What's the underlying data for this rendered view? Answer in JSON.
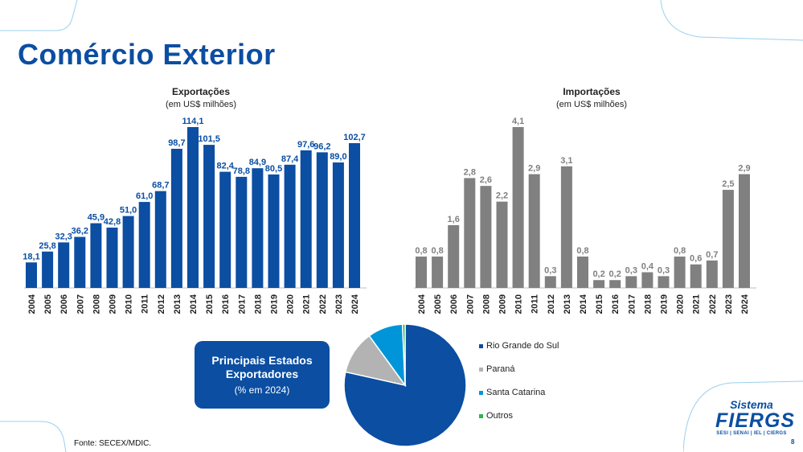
{
  "page": {
    "title": "Comércio Exterior",
    "source": "Fonte: SECEX/MDIC.",
    "page_number": "8"
  },
  "logo": {
    "line1": "Sistema",
    "line2": "FIERGS",
    "line3": "SESI | SENAI | IEL | CIERGS"
  },
  "badge": {
    "line1": "Principais Estados",
    "line2": "Exportadores",
    "line3": "(% em 2024)"
  },
  "colors": {
    "accent": "#0b4ea2",
    "bar_exports": "#0b4ea2",
    "bar_imports": "#808080"
  },
  "chart_data": [
    {
      "type": "bar",
      "title": "Exportações",
      "subtitle": "(em US$ milhões)",
      "categories": [
        "2004",
        "2005",
        "2006",
        "2007",
        "2008",
        "2009",
        "2010",
        "2011",
        "2012",
        "2013",
        "2014",
        "2015",
        "2016",
        "2017",
        "2018",
        "2019",
        "2020",
        "2021",
        "2022",
        "2023",
        "2024"
      ],
      "values": [
        18.1,
        25.8,
        32.3,
        36.2,
        45.9,
        42.8,
        51.0,
        61.0,
        68.7,
        98.7,
        114.1,
        101.5,
        82.4,
        78.8,
        84.9,
        80.5,
        87.4,
        97.6,
        96.2,
        89.0,
        102.7
      ],
      "labels": [
        "18,1",
        "25,8",
        "32,3",
        "36,2",
        "45,9",
        "42,8",
        "51,0",
        "61,0",
        "68,7",
        "98,7",
        "114,1",
        "101,5",
        "82,4",
        "78,8",
        "84,9",
        "80,5",
        "87,4",
        "97,6",
        "96,2",
        "89,0",
        "102,7"
      ],
      "ylim": [
        0,
        114.1
      ],
      "grid": false
    },
    {
      "type": "bar",
      "title": "Importações",
      "subtitle": "(em US$ milhões)",
      "categories": [
        "2004",
        "2005",
        "2006",
        "2007",
        "2008",
        "2009",
        "2010",
        "2011",
        "2012",
        "2013",
        "2014",
        "2015",
        "2016",
        "2017",
        "2018",
        "2019",
        "2020",
        "2021",
        "2022",
        "2023",
        "2024"
      ],
      "values": [
        0.8,
        0.8,
        1.6,
        2.8,
        2.6,
        2.2,
        4.1,
        2.9,
        0.3,
        3.1,
        0.8,
        0.2,
        0.2,
        0.3,
        0.4,
        0.3,
        0.8,
        0.6,
        0.7,
        2.5,
        2.9
      ],
      "labels": [
        "0,8",
        "0,8",
        "1,6",
        "2,8",
        "2,6",
        "2,2",
        "4,1",
        "2,9",
        "0,3",
        "3,1",
        "0,8",
        "0,2",
        "0,2",
        "0,3",
        "0,4",
        "0,3",
        "0,8",
        "0,6",
        "0,7",
        "2,5",
        "2,9"
      ],
      "ylim": [
        0,
        4.1
      ],
      "grid": false
    },
    {
      "type": "pie",
      "categories": [
        "Rio Grande do Sul",
        "Paraná",
        "Santa Catarina",
        "Outros"
      ],
      "values": [
        78.5,
        11.5,
        9.3,
        0.7
      ],
      "colors": [
        "#0b4ea2",
        "#b3b3b3",
        "#0095d9",
        "#2db34a"
      ],
      "legend": "right"
    }
  ]
}
